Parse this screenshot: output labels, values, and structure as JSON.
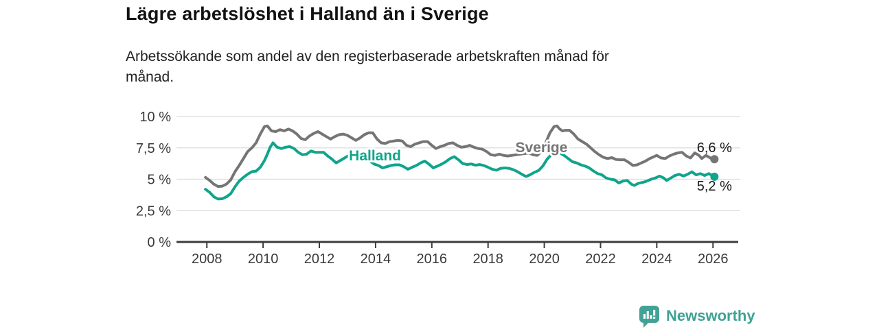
{
  "chart_data": {
    "type": "line",
    "title": "Lägre arbetslöshet i Halland än i Sverige",
    "subtitle_lines": [
      "Arbetssökande som andel av den registerbaserade arbetskraften månad för",
      "månad."
    ],
    "x_domain": [
      2006.92,
      2026.97
    ],
    "y_domain": [
      0,
      10
    ],
    "grid": true,
    "x_ticks": [
      2008,
      2010,
      2012,
      2014,
      2016,
      2018,
      2020,
      2022,
      2024,
      2026
    ],
    "y_ticks": [
      {
        "value": 10,
        "label": "10 %"
      },
      {
        "value": 7.5,
        "label": "7,5 %"
      },
      {
        "value": 5,
        "label": "5 %"
      },
      {
        "value": 2.5,
        "label": "2,5 %"
      },
      {
        "value": 0,
        "label": "0 %"
      }
    ],
    "axis_color": "#3c3c3c",
    "grid_color": "#dcdcdc",
    "series": [
      {
        "name": "Sverige",
        "color": "#757575",
        "label_x": 2019.9,
        "label_y": 7.15,
        "end_label": "6,6 %",
        "end_value": 6.6,
        "end_label_dy": -10,
        "points": [
          [
            2007.95,
            5.15
          ],
          [
            2008.1,
            4.9
          ],
          [
            2008.25,
            4.6
          ],
          [
            2008.4,
            4.42
          ],
          [
            2008.55,
            4.45
          ],
          [
            2008.7,
            4.62
          ],
          [
            2008.85,
            4.95
          ],
          [
            2009.0,
            5.6
          ],
          [
            2009.15,
            6.1
          ],
          [
            2009.3,
            6.65
          ],
          [
            2009.45,
            7.2
          ],
          [
            2009.6,
            7.5
          ],
          [
            2009.75,
            7.9
          ],
          [
            2009.9,
            8.6
          ],
          [
            2010.05,
            9.2
          ],
          [
            2010.15,
            9.25
          ],
          [
            2010.3,
            8.85
          ],
          [
            2010.45,
            8.8
          ],
          [
            2010.6,
            8.95
          ],
          [
            2010.75,
            8.85
          ],
          [
            2010.9,
            9.0
          ],
          [
            2011.05,
            8.85
          ],
          [
            2011.2,
            8.6
          ],
          [
            2011.35,
            8.25
          ],
          [
            2011.5,
            8.15
          ],
          [
            2011.65,
            8.45
          ],
          [
            2011.8,
            8.65
          ],
          [
            2011.95,
            8.8
          ],
          [
            2012.1,
            8.6
          ],
          [
            2012.25,
            8.4
          ],
          [
            2012.4,
            8.2
          ],
          [
            2012.55,
            8.4
          ],
          [
            2012.7,
            8.55
          ],
          [
            2012.85,
            8.6
          ],
          [
            2013.0,
            8.5
          ],
          [
            2013.15,
            8.3
          ],
          [
            2013.3,
            8.1
          ],
          [
            2013.45,
            8.3
          ],
          [
            2013.6,
            8.55
          ],
          [
            2013.75,
            8.7
          ],
          [
            2013.9,
            8.7
          ],
          [
            2014.05,
            8.2
          ],
          [
            2014.2,
            7.9
          ],
          [
            2014.35,
            7.85
          ],
          [
            2014.5,
            8.0
          ],
          [
            2014.65,
            8.05
          ],
          [
            2014.8,
            8.1
          ],
          [
            2014.95,
            8.05
          ],
          [
            2015.1,
            7.7
          ],
          [
            2015.25,
            7.6
          ],
          [
            2015.4,
            7.8
          ],
          [
            2015.55,
            7.9
          ],
          [
            2015.7,
            8.0
          ],
          [
            2015.85,
            8.0
          ],
          [
            2016.0,
            7.7
          ],
          [
            2016.15,
            7.45
          ],
          [
            2016.3,
            7.6
          ],
          [
            2016.45,
            7.7
          ],
          [
            2016.6,
            7.85
          ],
          [
            2016.75,
            7.9
          ],
          [
            2016.9,
            7.7
          ],
          [
            2017.05,
            7.55
          ],
          [
            2017.2,
            7.6
          ],
          [
            2017.35,
            7.7
          ],
          [
            2017.5,
            7.55
          ],
          [
            2017.65,
            7.45
          ],
          [
            2017.8,
            7.4
          ],
          [
            2017.95,
            7.2
          ],
          [
            2018.1,
            6.95
          ],
          [
            2018.25,
            6.9
          ],
          [
            2018.4,
            7.0
          ],
          [
            2018.55,
            6.9
          ],
          [
            2018.7,
            6.85
          ],
          [
            2018.85,
            6.9
          ],
          [
            2019.0,
            6.95
          ],
          [
            2019.15,
            7.0
          ],
          [
            2019.3,
            7.05
          ],
          [
            2019.45,
            7.1
          ],
          [
            2019.6,
            6.95
          ],
          [
            2019.75,
            6.9
          ],
          [
            2019.9,
            7.2
          ],
          [
            2020.05,
            7.9
          ],
          [
            2020.2,
            8.7
          ],
          [
            2020.35,
            9.2
          ],
          [
            2020.45,
            9.25
          ],
          [
            2020.55,
            9.0
          ],
          [
            2020.65,
            8.85
          ],
          [
            2020.75,
            8.9
          ],
          [
            2020.9,
            8.9
          ],
          [
            2021.05,
            8.6
          ],
          [
            2021.2,
            8.2
          ],
          [
            2021.35,
            8.0
          ],
          [
            2021.5,
            7.8
          ],
          [
            2021.65,
            7.5
          ],
          [
            2021.8,
            7.2
          ],
          [
            2021.95,
            6.95
          ],
          [
            2022.1,
            6.75
          ],
          [
            2022.25,
            6.65
          ],
          [
            2022.4,
            6.72
          ],
          [
            2022.55,
            6.58
          ],
          [
            2022.7,
            6.55
          ],
          [
            2022.85,
            6.55
          ],
          [
            2023.0,
            6.35
          ],
          [
            2023.15,
            6.1
          ],
          [
            2023.3,
            6.15
          ],
          [
            2023.45,
            6.3
          ],
          [
            2023.6,
            6.45
          ],
          [
            2023.75,
            6.65
          ],
          [
            2023.9,
            6.8
          ],
          [
            2024.0,
            6.9
          ],
          [
            2024.15,
            6.7
          ],
          [
            2024.3,
            6.65
          ],
          [
            2024.45,
            6.85
          ],
          [
            2024.6,
            7.0
          ],
          [
            2024.75,
            7.1
          ],
          [
            2024.9,
            7.15
          ],
          [
            2025.05,
            6.85
          ],
          [
            2025.2,
            6.7
          ],
          [
            2025.35,
            7.1
          ],
          [
            2025.5,
            6.9
          ],
          [
            2025.6,
            6.65
          ],
          [
            2025.75,
            6.9
          ],
          [
            2025.9,
            6.7
          ],
          [
            2026.05,
            6.6
          ]
        ]
      },
      {
        "name": "Halland",
        "color": "#10A48C",
        "label_x": 2013.98,
        "label_y": 6.5,
        "end_label": "5,2 %",
        "end_value": 5.2,
        "end_label_dy": 20,
        "points": [
          [
            2007.95,
            4.2
          ],
          [
            2008.1,
            3.95
          ],
          [
            2008.25,
            3.6
          ],
          [
            2008.4,
            3.42
          ],
          [
            2008.55,
            3.45
          ],
          [
            2008.7,
            3.6
          ],
          [
            2008.85,
            3.85
          ],
          [
            2009.0,
            4.4
          ],
          [
            2009.15,
            4.85
          ],
          [
            2009.3,
            5.15
          ],
          [
            2009.45,
            5.4
          ],
          [
            2009.6,
            5.6
          ],
          [
            2009.75,
            5.65
          ],
          [
            2009.9,
            5.95
          ],
          [
            2010.05,
            6.5
          ],
          [
            2010.15,
            7.0
          ],
          [
            2010.25,
            7.55
          ],
          [
            2010.35,
            7.9
          ],
          [
            2010.5,
            7.55
          ],
          [
            2010.65,
            7.45
          ],
          [
            2010.8,
            7.55
          ],
          [
            2010.95,
            7.6
          ],
          [
            2011.1,
            7.45
          ],
          [
            2011.25,
            7.15
          ],
          [
            2011.4,
            6.95
          ],
          [
            2011.55,
            7.0
          ],
          [
            2011.7,
            7.25
          ],
          [
            2011.85,
            7.15
          ],
          [
            2012.0,
            7.15
          ],
          [
            2012.15,
            7.15
          ],
          [
            2012.3,
            6.85
          ],
          [
            2012.45,
            6.6
          ],
          [
            2012.6,
            6.3
          ],
          [
            2012.75,
            6.5
          ],
          [
            2012.9,
            6.7
          ],
          [
            2013.05,
            6.9
          ],
          [
            2013.2,
            7.0
          ],
          [
            2013.35,
            7.3
          ],
          [
            2013.5,
            7.05
          ],
          [
            2013.65,
            6.75
          ],
          [
            2013.8,
            6.45
          ],
          [
            2013.95,
            6.2
          ],
          [
            2014.1,
            6.1
          ],
          [
            2014.25,
            5.9
          ],
          [
            2014.4,
            6.0
          ],
          [
            2014.55,
            6.1
          ],
          [
            2014.7,
            6.15
          ],
          [
            2014.85,
            6.15
          ],
          [
            2015.0,
            6.0
          ],
          [
            2015.15,
            5.8
          ],
          [
            2015.3,
            5.95
          ],
          [
            2015.45,
            6.1
          ],
          [
            2015.6,
            6.3
          ],
          [
            2015.75,
            6.45
          ],
          [
            2015.9,
            6.2
          ],
          [
            2016.05,
            5.9
          ],
          [
            2016.2,
            6.05
          ],
          [
            2016.35,
            6.2
          ],
          [
            2016.5,
            6.4
          ],
          [
            2016.65,
            6.65
          ],
          [
            2016.8,
            6.8
          ],
          [
            2016.95,
            6.55
          ],
          [
            2017.1,
            6.25
          ],
          [
            2017.25,
            6.17
          ],
          [
            2017.4,
            6.22
          ],
          [
            2017.55,
            6.12
          ],
          [
            2017.7,
            6.17
          ],
          [
            2017.85,
            6.1
          ],
          [
            2018.0,
            5.95
          ],
          [
            2018.15,
            5.8
          ],
          [
            2018.3,
            5.72
          ],
          [
            2018.45,
            5.87
          ],
          [
            2018.6,
            5.9
          ],
          [
            2018.75,
            5.87
          ],
          [
            2018.9,
            5.76
          ],
          [
            2019.05,
            5.6
          ],
          [
            2019.2,
            5.4
          ],
          [
            2019.35,
            5.22
          ],
          [
            2019.5,
            5.36
          ],
          [
            2019.65,
            5.55
          ],
          [
            2019.8,
            5.7
          ],
          [
            2019.95,
            6.05
          ],
          [
            2020.1,
            6.6
          ],
          [
            2020.25,
            6.95
          ],
          [
            2020.4,
            7.25
          ],
          [
            2020.55,
            7.1
          ],
          [
            2020.7,
            6.9
          ],
          [
            2020.85,
            6.65
          ],
          [
            2021.0,
            6.4
          ],
          [
            2021.15,
            6.3
          ],
          [
            2021.3,
            6.15
          ],
          [
            2021.45,
            6.05
          ],
          [
            2021.6,
            5.9
          ],
          [
            2021.75,
            5.65
          ],
          [
            2021.9,
            5.45
          ],
          [
            2022.05,
            5.35
          ],
          [
            2022.2,
            5.1
          ],
          [
            2022.35,
            5.0
          ],
          [
            2022.5,
            4.95
          ],
          [
            2022.65,
            4.7
          ],
          [
            2022.8,
            4.85
          ],
          [
            2022.95,
            4.9
          ],
          [
            2023.1,
            4.6
          ],
          [
            2023.2,
            4.5
          ],
          [
            2023.35,
            4.68
          ],
          [
            2023.5,
            4.75
          ],
          [
            2023.65,
            4.85
          ],
          [
            2023.8,
            5.0
          ],
          [
            2023.95,
            5.1
          ],
          [
            2024.1,
            5.25
          ],
          [
            2024.25,
            5.1
          ],
          [
            2024.35,
            4.9
          ],
          [
            2024.5,
            5.1
          ],
          [
            2024.65,
            5.3
          ],
          [
            2024.8,
            5.4
          ],
          [
            2024.95,
            5.25
          ],
          [
            2025.1,
            5.4
          ],
          [
            2025.25,
            5.59
          ],
          [
            2025.4,
            5.35
          ],
          [
            2025.55,
            5.45
          ],
          [
            2025.7,
            5.3
          ],
          [
            2025.85,
            5.45
          ],
          [
            2026.05,
            5.2
          ]
        ]
      }
    ]
  },
  "footer": {
    "brand": "Newsworthy",
    "brand_color": "#3EA294",
    "logo_icon": "bar-chart-speech-bubble"
  }
}
